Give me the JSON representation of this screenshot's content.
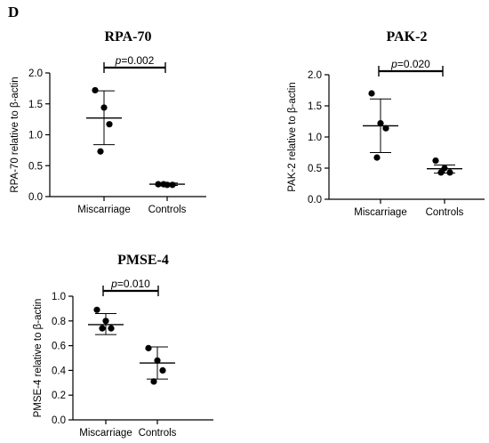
{
  "panel_label": "D",
  "chart_data": [
    {
      "type": "scatter",
      "title": "RPA-70",
      "ylabel": "RPA-70 relative to β-actin",
      "xlabel": "",
      "categories": [
        "Miscarriage",
        "Controls"
      ],
      "ylim": [
        0,
        2.0
      ],
      "yticks": [
        "0.0",
        "0.5",
        "1.0",
        "1.5",
        "2.0"
      ],
      "points": [
        [
          1.72,
          1.44,
          1.17,
          0.73
        ],
        [
          0.2,
          0.19,
          0.19,
          0.2
        ]
      ],
      "mean": [
        1.27,
        0.2
      ],
      "sd_upper": [
        1.71,
        0.22
      ],
      "sd_lower": [
        0.84,
        0.18
      ],
      "annotation": {
        "prefix": "p",
        "text": "=0.002"
      }
    },
    {
      "type": "scatter",
      "title": "PAK-2",
      "ylabel": "PAK-2 relative to β-actin",
      "xlabel": "",
      "categories": [
        "Miscarriage",
        "Controls"
      ],
      "ylim": [
        0,
        2.0
      ],
      "yticks": [
        "0.0",
        "0.5",
        "1.0",
        "1.5",
        "2.0"
      ],
      "points": [
        [
          1.7,
          1.22,
          1.14,
          0.67
        ],
        [
          0.62,
          0.5,
          0.43,
          0.43
        ]
      ],
      "mean": [
        1.18,
        0.49
      ],
      "sd_upper": [
        1.61,
        0.55
      ],
      "sd_lower": [
        0.75,
        0.42
      ],
      "annotation": {
        "prefix": "p",
        "text": "=0.020"
      }
    },
    {
      "type": "scatter",
      "title": "PMSE-4",
      "ylabel": "PMSE-4 relative to β-actin",
      "xlabel": "",
      "categories": [
        "Miscarriage",
        "Controls"
      ],
      "ylim": [
        0,
        1.0
      ],
      "yticks": [
        "0.0",
        "0.2",
        "0.4",
        "0.6",
        "0.8",
        "1.0"
      ],
      "points": [
        [
          0.89,
          0.8,
          0.74,
          0.74
        ],
        [
          0.58,
          0.48,
          0.4,
          0.31
        ]
      ],
      "mean": [
        0.77,
        0.46
      ],
      "sd_upper": [
        0.86,
        0.59
      ],
      "sd_lower": [
        0.69,
        0.33
      ],
      "annotation": {
        "prefix": "p",
        "text": "=0.010"
      }
    }
  ]
}
